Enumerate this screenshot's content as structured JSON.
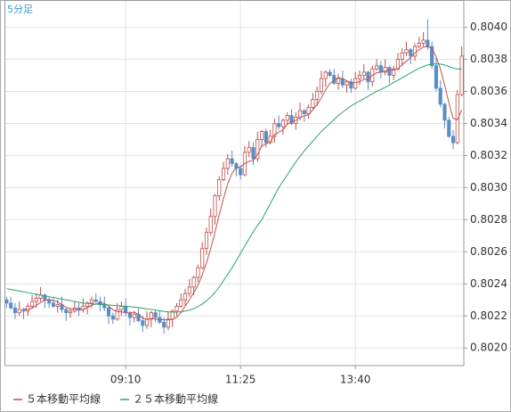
{
  "chart_data": {
    "type": "candlestick",
    "title": "5分足",
    "categories": [
      null,
      null,
      null,
      null,
      null,
      null,
      null,
      null,
      null,
      null,
      null,
      null,
      null,
      null,
      null,
      null,
      null,
      null,
      null,
      null,
      null,
      null,
      null,
      null,
      null,
      null,
      null,
      null,
      "09:10",
      null,
      null,
      null,
      null,
      null,
      null,
      null,
      null,
      null,
      null,
      null,
      null,
      null,
      null,
      null,
      null,
      null,
      null,
      null,
      null,
      null,
      null,
      null,
      null,
      null,
      null,
      "11:25",
      null,
      null,
      null,
      null,
      null,
      null,
      null,
      null,
      null,
      null,
      null,
      null,
      null,
      null,
      null,
      null,
      null,
      null,
      null,
      null,
      null,
      null,
      null,
      null,
      null,
      null,
      "13:40",
      null,
      null,
      null,
      null,
      null,
      null,
      null,
      null,
      null,
      null,
      null,
      null,
      null,
      null,
      null,
      null,
      null,
      null,
      null,
      null,
      null,
      null,
      null,
      null,
      null
    ],
    "open": [
      0.8023,
      0.80228,
      0.80225,
      0.80222,
      0.80224,
      0.80223,
      0.80226,
      0.80229,
      0.80231,
      0.80233,
      0.8023,
      0.80228,
      0.80226,
      0.80227,
      0.80224,
      0.80222,
      0.80223,
      0.80225,
      0.80224,
      0.80226,
      0.80228,
      0.8023,
      0.80229,
      0.80227,
      0.80225,
      0.8022,
      0.80218,
      0.80224,
      0.80226,
      0.80222,
      0.80219,
      0.80221,
      0.80217,
      0.80214,
      0.80218,
      0.80222,
      0.80219,
      0.80216,
      0.80213,
      0.80218,
      0.80223,
      0.80226,
      0.8023,
      0.80234,
      0.80238,
      0.80244,
      0.8025,
      0.80262,
      0.80272,
      0.80282,
      0.80295,
      0.80305,
      0.80312,
      0.80318,
      0.80315,
      0.80312,
      0.80308,
      0.80322,
      0.80325,
      0.80318,
      0.8033,
      0.80335,
      0.80328,
      0.80332,
      0.8034,
      0.80338,
      0.80342,
      0.80345,
      0.8034,
      0.80344,
      0.80348,
      0.80346,
      0.8035,
      0.80355,
      0.8036,
      0.80368,
      0.80372,
      0.8037,
      0.80365,
      0.80368,
      0.80364,
      0.80366,
      0.80362,
      0.80368,
      0.8037,
      0.80372,
      0.80366,
      0.80374,
      0.80376,
      0.80372,
      0.80375,
      0.8037,
      0.80374,
      0.8038,
      0.80384,
      0.80386,
      0.80382,
      0.80388,
      0.8039,
      0.80392,
      0.80388,
      0.80376,
      0.80362,
      0.80352,
      0.80342,
      0.80332,
      0.80328,
      0.80358
    ],
    "high": [
      0.80232,
      0.80232,
      0.80228,
      0.80229,
      0.80225,
      0.80228,
      0.80233,
      0.80234,
      0.80238,
      0.80234,
      0.80232,
      0.80232,
      0.8023,
      0.80232,
      0.80225,
      0.80225,
      0.80229,
      0.80228,
      0.80231,
      0.80229,
      0.80232,
      0.80234,
      0.80232,
      0.80232,
      0.80226,
      0.80222,
      0.80228,
      0.80229,
      0.80231,
      0.80223,
      0.80223,
      0.80225,
      0.8022,
      0.80223,
      0.80223,
      0.80224,
      0.80223,
      0.80219,
      0.80223,
      0.80224,
      0.80228,
      0.80234,
      0.80237,
      0.80243,
      0.80245,
      0.80252,
      0.80266,
      0.80275,
      0.80287,
      0.80296,
      0.80307,
      0.80316,
      0.80321,
      0.80323,
      0.80316,
      0.80314,
      0.80326,
      0.80329,
      0.80328,
      0.80335,
      0.80336,
      0.80337,
      0.80336,
      0.80343,
      0.80345,
      0.80343,
      0.80347,
      0.80349,
      0.80347,
      0.80353,
      0.80349,
      0.80352,
      0.80359,
      0.80363,
      0.80373,
      0.80373,
      0.80374,
      0.80374,
      0.80371,
      0.80373,
      0.80367,
      0.80368,
      0.80372,
      0.80373,
      0.80377,
      0.80373,
      0.80376,
      0.8038,
      0.80379,
      0.8038,
      0.80376,
      0.80376,
      0.80384,
      0.80387,
      0.80391,
      0.80387,
      0.8039,
      0.80394,
      0.80397,
      0.80405,
      0.80391,
      0.80381,
      0.80367,
      0.80353,
      0.80344,
      0.80336,
      0.80361,
      0.80388
    ],
    "low": [
      0.80225,
      0.80224,
      0.80218,
      0.8022,
      0.80218,
      0.8022,
      0.80225,
      0.80225,
      0.80229,
      0.80225,
      0.80225,
      0.80225,
      0.80222,
      0.80222,
      0.80217,
      0.80219,
      0.80222,
      0.8022,
      0.80222,
      0.80221,
      0.80225,
      0.80228,
      0.80223,
      0.80223,
      0.80215,
      0.80215,
      0.80217,
      0.8022,
      0.8022,
      0.80214,
      0.80216,
      0.80216,
      0.8021,
      0.80212,
      0.80213,
      0.80216,
      0.80215,
      0.80209,
      0.80211,
      0.80213,
      0.8022,
      0.80225,
      0.80226,
      0.80232,
      0.80233,
      0.80241,
      0.80249,
      0.80258,
      0.8027,
      0.80277,
      0.80292,
      0.80304,
      0.80308,
      0.80313,
      0.80307,
      0.80305,
      0.80307,
      0.80319,
      0.80314,
      0.80316,
      0.80325,
      0.80325,
      0.80327,
      0.80328,
      0.80336,
      0.80333,
      0.80339,
      0.80339,
      0.80336,
      0.80342,
      0.80341,
      0.80343,
      0.80349,
      0.80351,
      0.80358,
      0.80363,
      0.80369,
      0.80364,
      0.80361,
      0.80362,
      0.80359,
      0.80359,
      0.80361,
      0.80364,
      0.80368,
      0.80361,
      0.80363,
      0.80373,
      0.80368,
      0.8037,
      0.80365,
      0.80367,
      0.80373,
      0.80376,
      0.80382,
      0.80377,
      0.80379,
      0.80387,
      0.80388,
      0.80386,
      0.80374,
      0.8036,
      0.8035,
      0.80337,
      0.80331,
      0.80324,
      0.80327,
      0.80357
    ],
    "close": [
      0.80228,
      0.80225,
      0.80222,
      0.80224,
      0.80223,
      0.80226,
      0.80229,
      0.80231,
      0.80233,
      0.8023,
      0.80228,
      0.80226,
      0.80227,
      0.80224,
      0.80222,
      0.80223,
      0.80225,
      0.80224,
      0.80226,
      0.80228,
      0.8023,
      0.80229,
      0.80227,
      0.80225,
      0.8022,
      0.80218,
      0.80224,
      0.80226,
      0.80222,
      0.80219,
      0.80221,
      0.80217,
      0.80214,
      0.80218,
      0.80222,
      0.80219,
      0.80216,
      0.80213,
      0.80218,
      0.80223,
      0.80226,
      0.8023,
      0.80234,
      0.80238,
      0.80244,
      0.8025,
      0.80262,
      0.80272,
      0.80282,
      0.80295,
      0.80305,
      0.80312,
      0.80318,
      0.80315,
      0.80312,
      0.80308,
      0.80322,
      0.80325,
      0.80318,
      0.8033,
      0.80335,
      0.80328,
      0.80332,
      0.8034,
      0.80338,
      0.80342,
      0.80345,
      0.8034,
      0.80344,
      0.80348,
      0.80346,
      0.8035,
      0.80355,
      0.8036,
      0.80368,
      0.80372,
      0.8037,
      0.80365,
      0.80368,
      0.80364,
      0.80366,
      0.80362,
      0.80368,
      0.8037,
      0.80372,
      0.80366,
      0.80374,
      0.80376,
      0.80372,
      0.80375,
      0.8037,
      0.80374,
      0.8038,
      0.80384,
      0.80386,
      0.80382,
      0.80388,
      0.8039,
      0.80392,
      0.80388,
      0.80376,
      0.80362,
      0.80352,
      0.80342,
      0.80332,
      0.80328,
      0.80358,
      0.80382
    ],
    "up_color": "#c0504d",
    "down_color": "#5b8ec8",
    "series": [
      {
        "name": "５本移動平均線",
        "color": "#c0504d",
        "values": [
          null,
          null,
          null,
          null,
          0.802244,
          0.80224,
          0.802248,
          0.802266,
          0.802284,
          0.802298,
          0.802302,
          0.802296,
          0.802288,
          0.80227,
          0.802254,
          0.802244,
          0.802242,
          0.802236,
          0.80224,
          0.802252,
          0.802266,
          0.802274,
          0.80228,
          0.802278,
          0.802262,
          0.802238,
          0.802228,
          0.802226,
          0.80222,
          0.802218,
          0.802224,
          0.80221,
          0.802186,
          0.802178,
          0.802184,
          0.80218,
          0.802178,
          0.802176,
          0.802176,
          0.802178,
          0.802192,
          0.80222,
          0.802262,
          0.802302,
          0.802344,
          0.802392,
          0.802456,
          0.802532,
          0.80262,
          0.802722,
          0.802832,
          0.802932,
          0.803024,
          0.80309,
          0.803124,
          0.80313,
          0.80315,
          0.803164,
          0.80317,
          0.803206,
          0.80326,
          0.803272,
          0.803286,
          0.80333,
          0.803346,
          0.80336,
          0.803394,
          0.80341,
          0.803418,
          0.803438,
          0.803446,
          0.803456,
          0.803486,
          0.803518,
          0.803558,
          0.80361,
          0.80365,
          0.80367,
          0.803686,
          0.803678,
          0.803666,
          0.80365,
          0.803656,
          0.80366,
          0.803676,
          0.803676,
          0.8037,
          0.803716,
          0.80372,
          0.803726,
          0.803734,
          0.803734,
          0.803742,
          0.803766,
          0.803788,
          0.803812,
          0.80384,
          0.80386,
          0.803876,
          0.80388,
          0.803868,
          0.803816,
          0.80374,
          0.80364,
          0.803528,
          0.803432,
          0.803424,
          0.803484
        ]
      },
      {
        "name": "２５本移動平均線",
        "color": "#2ba36f",
        "values": [
          0.80237,
          0.802365,
          0.80236,
          0.802355,
          0.80235,
          0.802345,
          0.80234,
          0.802335,
          0.80233,
          0.802325,
          0.80232,
          0.802315,
          0.80231,
          0.802305,
          0.8023,
          0.802295,
          0.80229,
          0.802285,
          0.80228,
          0.802278,
          0.802276,
          0.802274,
          0.802272,
          0.80227,
          0.802268,
          0.802266,
          0.802264,
          0.802262,
          0.80226,
          0.802258,
          0.802255,
          0.802252,
          0.802248,
          0.802244,
          0.80224,
          0.802236,
          0.802232,
          0.802228,
          0.802225,
          0.802224,
          0.802224,
          0.802226,
          0.80223,
          0.802236,
          0.802245,
          0.802258,
          0.802274,
          0.802294,
          0.802318,
          0.802346,
          0.80238,
          0.80242,
          0.80246,
          0.8025,
          0.802545,
          0.80259,
          0.802635,
          0.80268,
          0.802725,
          0.802765,
          0.8028,
          0.80285,
          0.8029,
          0.80295,
          0.803,
          0.80304,
          0.80308,
          0.80312,
          0.80316,
          0.803195,
          0.80323,
          0.80326,
          0.80329,
          0.80332,
          0.80335,
          0.803375,
          0.8034,
          0.803425,
          0.80345,
          0.80347,
          0.80349,
          0.80351,
          0.803525,
          0.80354,
          0.803555,
          0.80357,
          0.803585,
          0.8036,
          0.803612,
          0.803625,
          0.80364,
          0.803655,
          0.80367,
          0.803685,
          0.8037,
          0.803715,
          0.80373,
          0.803745,
          0.803755,
          0.803765,
          0.80377,
          0.803772,
          0.80377,
          0.803765,
          0.803755,
          0.803745,
          0.80374,
          0.80374
        ]
      }
    ],
    "ylim": [
      0.80189,
      0.80417
    ],
    "yticks": [
      {
        "value": 0.802,
        "label": "0.8020"
      },
      {
        "value": 0.8022,
        "label": "0.8022"
      },
      {
        "value": 0.8024,
        "label": "0.8024"
      },
      {
        "value": 0.8026,
        "label": "0.8026"
      },
      {
        "value": 0.8028,
        "label": "0.8028"
      },
      {
        "value": 0.803,
        "label": "0.8030"
      },
      {
        "value": 0.8032,
        "label": "0.8032"
      },
      {
        "value": 0.8034,
        "label": "0.8034"
      },
      {
        "value": 0.8036,
        "label": "0.8036"
      },
      {
        "value": 0.8038,
        "label": "0.8038"
      },
      {
        "value": 0.804,
        "label": "0.8040"
      }
    ],
    "grid": true,
    "legend": "bottom"
  }
}
